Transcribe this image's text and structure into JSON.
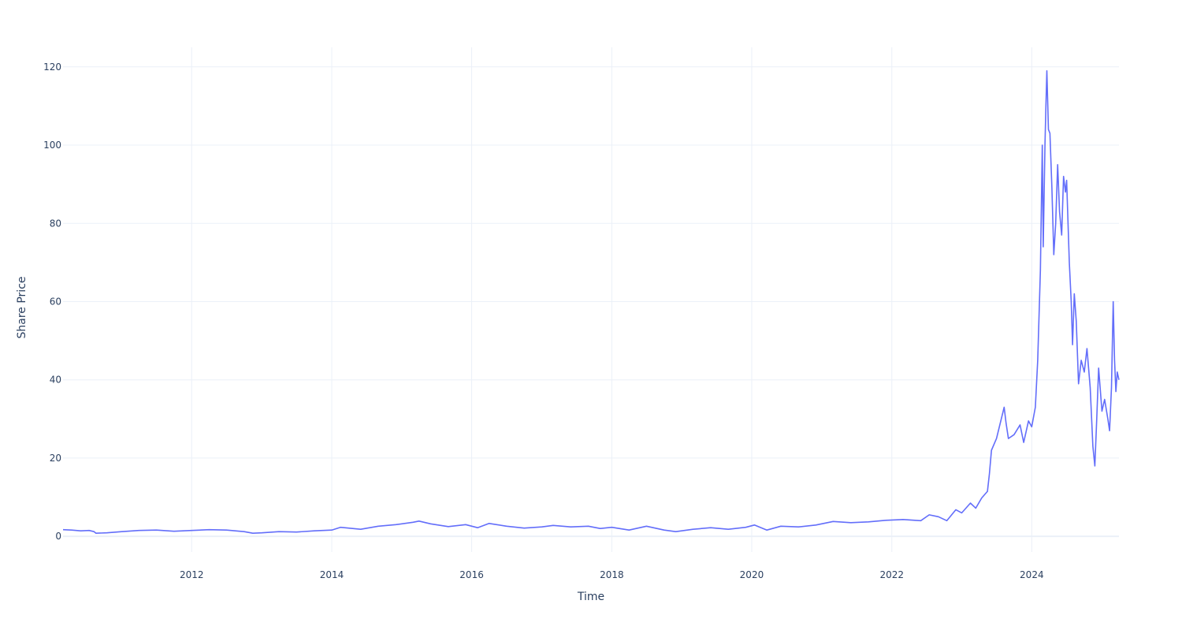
{
  "chart_data": {
    "type": "line",
    "title": "",
    "xlabel": "Time",
    "ylabel": "Share Price",
    "x_range": [
      "2010-03-01",
      "2025-03-31"
    ],
    "ylim": [
      -4,
      125
    ],
    "x_ticks": [
      {
        "date": "2012-01-01",
        "label": "2012"
      },
      {
        "date": "2014-01-01",
        "label": "2014"
      },
      {
        "date": "2016-01-01",
        "label": "2016"
      },
      {
        "date": "2018-01-01",
        "label": "2018"
      },
      {
        "date": "2020-01-01",
        "label": "2020"
      },
      {
        "date": "2022-01-01",
        "label": "2022"
      },
      {
        "date": "2024-01-01",
        "label": "2024"
      }
    ],
    "y_ticks": [
      0,
      20,
      40,
      60,
      80,
      100,
      120
    ],
    "grid": true,
    "legend": "none",
    "series": [
      {
        "color": "#636efa",
        "points": [
          [
            "2010-03-01",
            1.7
          ],
          [
            "2010-04-15",
            1.6
          ],
          [
            "2010-06-01",
            1.4
          ],
          [
            "2010-07-15",
            1.5
          ],
          [
            "2010-08-10",
            1.2
          ],
          [
            "2010-08-20",
            0.8
          ],
          [
            "2010-10-15",
            0.9
          ],
          [
            "2011-01-01",
            1.2
          ],
          [
            "2011-04-01",
            1.5
          ],
          [
            "2011-07-01",
            1.6
          ],
          [
            "2011-10-01",
            1.3
          ],
          [
            "2012-01-01",
            1.5
          ],
          [
            "2012-04-01",
            1.7
          ],
          [
            "2012-07-01",
            1.6
          ],
          [
            "2012-10-01",
            1.2
          ],
          [
            "2012-11-15",
            0.8
          ],
          [
            "2013-01-01",
            0.9
          ],
          [
            "2013-04-01",
            1.2
          ],
          [
            "2013-07-01",
            1.1
          ],
          [
            "2013-10-01",
            1.4
          ],
          [
            "2014-01-01",
            1.6
          ],
          [
            "2014-02-15",
            2.3
          ],
          [
            "2014-06-01",
            1.8
          ],
          [
            "2014-09-01",
            2.6
          ],
          [
            "2014-12-01",
            3.0
          ],
          [
            "2015-03-01",
            3.6
          ],
          [
            "2015-04-01",
            3.9
          ],
          [
            "2015-06-01",
            3.2
          ],
          [
            "2015-09-01",
            2.5
          ],
          [
            "2015-12-01",
            3.0
          ],
          [
            "2016-02-01",
            2.2
          ],
          [
            "2016-04-01",
            3.3
          ],
          [
            "2016-07-01",
            2.6
          ],
          [
            "2016-10-01",
            2.1
          ],
          [
            "2017-01-01",
            2.4
          ],
          [
            "2017-03-01",
            2.8
          ],
          [
            "2017-06-01",
            2.4
          ],
          [
            "2017-09-01",
            2.6
          ],
          [
            "2017-11-01",
            2.0
          ],
          [
            "2018-01-01",
            2.3
          ],
          [
            "2018-04-01",
            1.6
          ],
          [
            "2018-07-01",
            2.6
          ],
          [
            "2018-10-01",
            1.6
          ],
          [
            "2018-12-01",
            1.2
          ],
          [
            "2019-03-01",
            1.8
          ],
          [
            "2019-06-01",
            2.2
          ],
          [
            "2019-09-01",
            1.8
          ],
          [
            "2019-12-01",
            2.3
          ],
          [
            "2020-01-15",
            2.9
          ],
          [
            "2020-03-20",
            1.6
          ],
          [
            "2020-06-01",
            2.6
          ],
          [
            "2020-09-01",
            2.4
          ],
          [
            "2020-12-01",
            2.9
          ],
          [
            "2021-03-01",
            3.8
          ],
          [
            "2021-06-01",
            3.5
          ],
          [
            "2021-09-01",
            3.7
          ],
          [
            "2021-12-01",
            4.1
          ],
          [
            "2022-03-01",
            4.3
          ],
          [
            "2022-06-01",
            4.0
          ],
          [
            "2022-07-15",
            5.5
          ],
          [
            "2022-09-01",
            5.0
          ],
          [
            "2022-10-15",
            4.0
          ],
          [
            "2022-12-01",
            6.8
          ],
          [
            "2023-01-01",
            6.0
          ],
          [
            "2023-02-15",
            8.5
          ],
          [
            "2023-03-15",
            7.2
          ],
          [
            "2023-04-15",
            9.8
          ],
          [
            "2023-05-15",
            11.5
          ],
          [
            "2023-05-25",
            16.0
          ],
          [
            "2023-06-05",
            22.0
          ],
          [
            "2023-07-01",
            25.0
          ],
          [
            "2023-08-10",
            33.0
          ],
          [
            "2023-08-20",
            29.0
          ],
          [
            "2023-09-01",
            25.0
          ],
          [
            "2023-10-01",
            26.0
          ],
          [
            "2023-11-01",
            28.5
          ],
          [
            "2023-11-20",
            24.0
          ],
          [
            "2023-12-15",
            29.5
          ],
          [
            "2024-01-01",
            28.0
          ],
          [
            "2024-01-20",
            33.0
          ],
          [
            "2024-02-01",
            45.0
          ],
          [
            "2024-02-15",
            68.0
          ],
          [
            "2024-02-25",
            100.0
          ],
          [
            "2024-03-01",
            74.0
          ],
          [
            "2024-03-10",
            100.0
          ],
          [
            "2024-03-15",
            110.0
          ],
          [
            "2024-03-20",
            119.0
          ],
          [
            "2024-03-28",
            104.0
          ],
          [
            "2024-04-05",
            103.0
          ],
          [
            "2024-04-15",
            89.0
          ],
          [
            "2024-04-25",
            72.0
          ],
          [
            "2024-05-05",
            80.0
          ],
          [
            "2024-05-15",
            95.0
          ],
          [
            "2024-05-25",
            83.0
          ],
          [
            "2024-06-05",
            77.0
          ],
          [
            "2024-06-15",
            92.0
          ],
          [
            "2024-06-25",
            88.0
          ],
          [
            "2024-07-01",
            91.0
          ],
          [
            "2024-07-15",
            70.0
          ],
          [
            "2024-07-25",
            60.0
          ],
          [
            "2024-08-01",
            49.0
          ],
          [
            "2024-08-10",
            62.0
          ],
          [
            "2024-08-20",
            55.0
          ],
          [
            "2024-09-01",
            39.0
          ],
          [
            "2024-09-15",
            45.0
          ],
          [
            "2024-10-01",
            42.0
          ],
          [
            "2024-10-15",
            48.0
          ],
          [
            "2024-11-01",
            38.0
          ],
          [
            "2024-11-15",
            23.0
          ],
          [
            "2024-11-25",
            18.0
          ],
          [
            "2024-12-05",
            30.0
          ],
          [
            "2024-12-15",
            43.0
          ],
          [
            "2025-01-01",
            32.0
          ],
          [
            "2025-01-15",
            35.0
          ],
          [
            "2025-02-01",
            30.0
          ],
          [
            "2025-02-10",
            27.0
          ],
          [
            "2025-02-20",
            38.0
          ],
          [
            "2025-03-01",
            60.0
          ],
          [
            "2025-03-08",
            45.0
          ],
          [
            "2025-03-15",
            37.0
          ],
          [
            "2025-03-22",
            42.0
          ],
          [
            "2025-03-31",
            40.0
          ]
        ]
      }
    ]
  }
}
